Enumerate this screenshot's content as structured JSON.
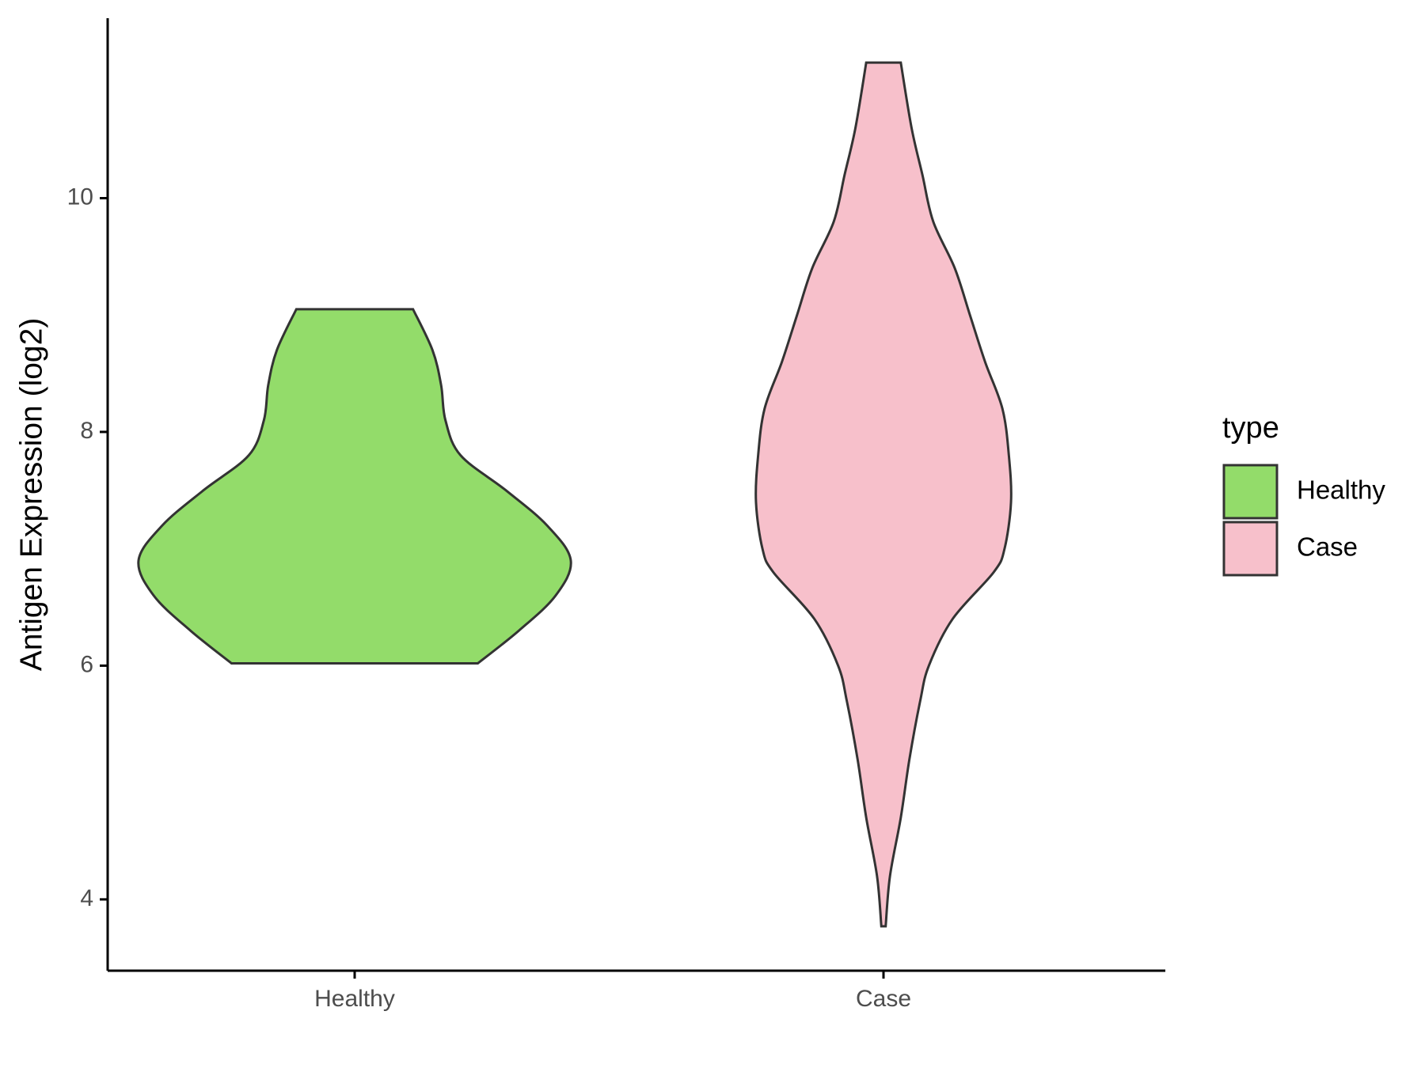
{
  "chart_data": {
    "type": "violin",
    "y_label": "Antigen Expression (log2)",
    "categories": [
      "Healthy",
      "Case"
    ],
    "legend_title": "type",
    "ylim": [
      3.39,
      11.54
    ],
    "yticks": [
      4,
      6,
      8,
      10
    ],
    "series": [
      {
        "name": "Healthy",
        "color": "#93dc6a",
        "values": [
          6.02,
          6.3,
          6.6,
          6.9,
          7.2,
          7.5,
          7.8,
          8.1,
          8.4,
          8.7,
          9.05
        ],
        "density": [
          0.57,
          0.76,
          0.93,
          1,
          0.89,
          0.7,
          0.49,
          0.42,
          0.4,
          0.36,
          0.27
        ]
      },
      {
        "name": "Case",
        "color": "#f7c0cb",
        "values": [
          3.77,
          4.2,
          4.7,
          5.2,
          5.7,
          6.0,
          6.4,
          6.8,
          7.0,
          7.4,
          7.8,
          8.2,
          8.6,
          9.0,
          9.4,
          9.8,
          10.2,
          10.6,
          11.16
        ],
        "density": [
          0.01,
          0.03,
          0.08,
          0.12,
          0.17,
          0.21,
          0.32,
          0.51,
          0.56,
          0.59,
          0.58,
          0.55,
          0.47,
          0.4,
          0.33,
          0.23,
          0.18,
          0.13,
          0.08
        ]
      }
    ]
  }
}
